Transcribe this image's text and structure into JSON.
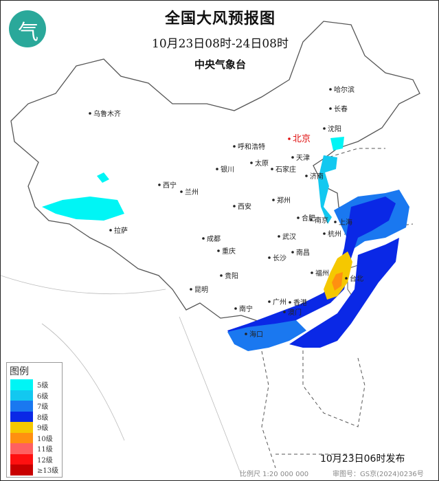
{
  "title": "全国大风预报图",
  "period": "10月23日08时-24日08时",
  "agency": "中央气象台",
  "logo_icon": "cma-logo-icon",
  "legend": {
    "heading": "图例",
    "items": [
      {
        "label": "5级",
        "color": "#00f5f5"
      },
      {
        "label": "6级",
        "color": "#12c8f0"
      },
      {
        "label": "7级",
        "color": "#1a78f0"
      },
      {
        "label": "8级",
        "color": "#0a28e6"
      },
      {
        "label": "9级",
        "color": "#f5c800"
      },
      {
        "label": "10级",
        "color": "#ff9010"
      },
      {
        "label": "11级",
        "color": "#ff6060"
      },
      {
        "label": "12级",
        "color": "#ff1010"
      },
      {
        "label": "≥13级",
        "color": "#c80000"
      }
    ]
  },
  "cities": [
    "北京",
    "天津",
    "石家庄",
    "太原",
    "呼和浩特",
    "银川",
    "西宁",
    "兰州",
    "西安",
    "郑州",
    "济南",
    "合肥",
    "南京",
    "上海",
    "杭州",
    "武汉",
    "长沙",
    "南昌",
    "福州",
    "台北",
    "成都",
    "重庆",
    "贵阳",
    "昆明",
    "南宁",
    "广州",
    "香港",
    "澳门",
    "海口",
    "拉萨",
    "乌鲁木齐",
    "哈尔滨",
    "长春",
    "沈阳"
  ],
  "capital_color": "#e01010",
  "issued": "10月23日06时发布",
  "scale": "比例尺 1:20 000 000",
  "approval": "审图号：GS京(2024)0236号"
}
